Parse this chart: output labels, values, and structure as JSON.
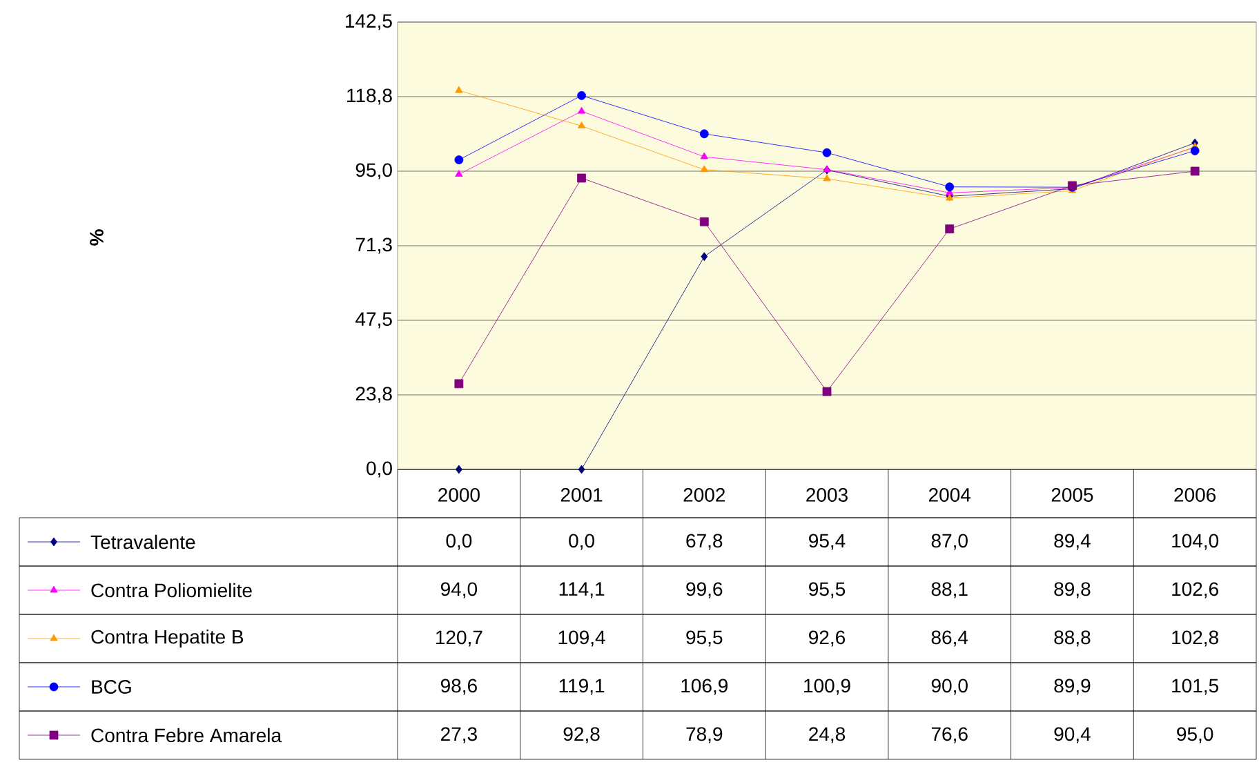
{
  "chart_data": {
    "type": "line",
    "annotations": [
      "%"
    ],
    "categories": [
      "2000",
      "2001",
      "2002",
      "2003",
      "2004",
      "2005",
      "2006"
    ],
    "ylim": [
      0,
      142.5
    ],
    "yticks": [
      {
        "value": 0,
        "label": "0,0"
      },
      {
        "value": 23.75,
        "label": "23,8"
      },
      {
        "value": 47.5,
        "label": "47,5"
      },
      {
        "value": 71.25,
        "label": "71,3"
      },
      {
        "value": 95,
        "label": "95,0"
      },
      {
        "value": 118.75,
        "label": "118,8"
      },
      {
        "value": 142.5,
        "label": "142,5"
      }
    ],
    "grid": "y",
    "legend": "bottom",
    "series": [
      {
        "name": "Tetravalente",
        "color": "#000080",
        "marker": "diamond",
        "values": [
          0.0,
          0.0,
          67.8,
          95.4,
          87.0,
          89.4,
          104.0
        ],
        "value_labels": [
          "0,0",
          "0,0",
          "67,8",
          "95,4",
          "87,0",
          "89,4",
          "104,0"
        ]
      },
      {
        "name": "Contra Poliomielite",
        "color": "#ff00ff",
        "marker": "triangle",
        "values": [
          94.0,
          114.1,
          99.6,
          95.5,
          88.1,
          89.8,
          102.6
        ],
        "value_labels": [
          "94,0",
          "114,1",
          "99,6",
          "95,5",
          "88,1",
          "89,8",
          "102,6"
        ]
      },
      {
        "name": "Contra Hepatite B",
        "color": "#ff9900",
        "marker": "triangle",
        "values": [
          120.7,
          109.4,
          95.5,
          92.6,
          86.4,
          88.8,
          102.8
        ],
        "value_labels": [
          "120,7",
          "109,4",
          "95,5",
          "92,6",
          "86,4",
          "88,8",
          "102,8"
        ]
      },
      {
        "name": "BCG",
        "color": "#0000ff",
        "marker": "circle",
        "values": [
          98.6,
          119.1,
          106.9,
          100.9,
          90.0,
          89.9,
          101.5
        ],
        "value_labels": [
          "98,6",
          "119,1",
          "106,9",
          "100,9",
          "90,0",
          "89,9",
          "101,5"
        ]
      },
      {
        "name": "Contra Febre Amarela",
        "color": "#800080",
        "marker": "square",
        "values": [
          27.3,
          92.8,
          78.9,
          24.8,
          76.6,
          90.4,
          95.0
        ],
        "value_labels": [
          "27,3",
          "92,8",
          "78,9",
          "24,8",
          "76,6",
          "90,4",
          "95,0"
        ]
      }
    ]
  }
}
